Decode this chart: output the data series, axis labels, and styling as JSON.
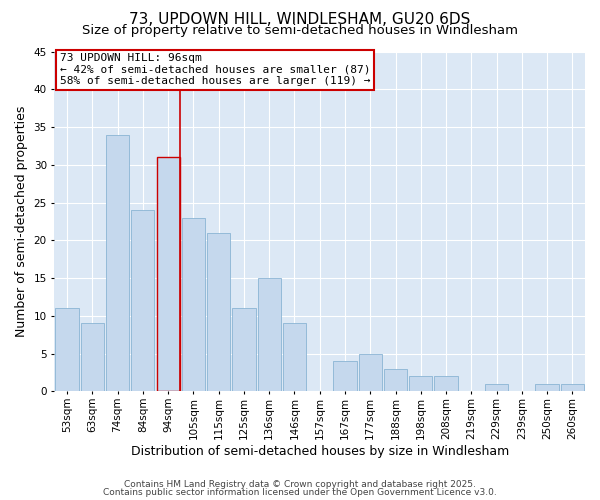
{
  "title": "73, UPDOWN HILL, WINDLESHAM, GU20 6DS",
  "subtitle": "Size of property relative to semi-detached houses in Windlesham",
  "xlabel": "Distribution of semi-detached houses by size in Windlesham",
  "ylabel": "Number of semi-detached properties",
  "categories": [
    "53sqm",
    "63sqm",
    "74sqm",
    "84sqm",
    "94sqm",
    "105sqm",
    "115sqm",
    "125sqm",
    "136sqm",
    "146sqm",
    "157sqm",
    "167sqm",
    "177sqm",
    "188sqm",
    "198sqm",
    "208sqm",
    "219sqm",
    "229sqm",
    "239sqm",
    "250sqm",
    "260sqm"
  ],
  "values": [
    11,
    9,
    34,
    24,
    31,
    23,
    21,
    11,
    15,
    9,
    0,
    4,
    5,
    3,
    2,
    2,
    0,
    1,
    0,
    1,
    1
  ],
  "bar_color": "#c5d8ed",
  "bar_edge_color": "#8ab4d4",
  "highlight_bar_index": 4,
  "highlight_bar_edge_color": "#cc0000",
  "vline_color": "#cc0000",
  "ylim": [
    0,
    45
  ],
  "yticks": [
    0,
    5,
    10,
    15,
    20,
    25,
    30,
    35,
    40,
    45
  ],
  "background_color": "#dce8f5",
  "grid_color": "#ffffff",
  "annotation_title": "73 UPDOWN HILL: 96sqm",
  "annotation_line1": "← 42% of semi-detached houses are smaller (87)",
  "annotation_line2": "58% of semi-detached houses are larger (119) →",
  "footer_line1": "Contains HM Land Registry data © Crown copyright and database right 2025.",
  "footer_line2": "Contains public sector information licensed under the Open Government Licence v3.0.",
  "title_fontsize": 11,
  "subtitle_fontsize": 9.5,
  "axis_label_fontsize": 9,
  "tick_fontsize": 7.5,
  "annotation_fontsize": 8,
  "footer_fontsize": 6.5
}
